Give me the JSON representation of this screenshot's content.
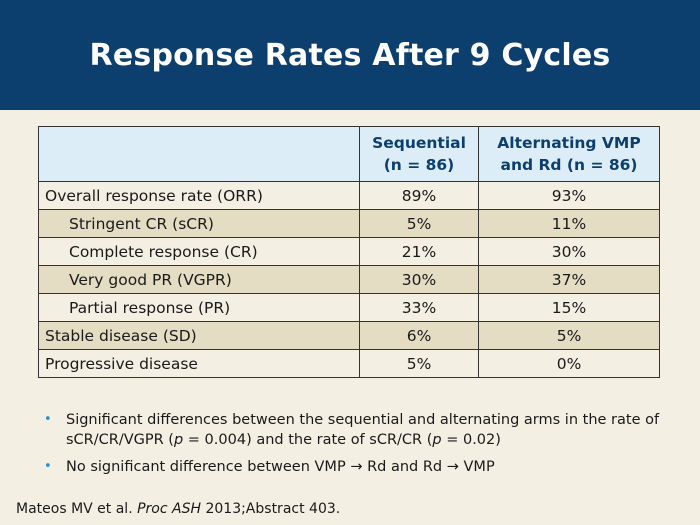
{
  "title": "Response Rates After 9 Cycles",
  "table": {
    "headers": {
      "blank": "",
      "col1_line1": "Sequential",
      "col1_line2": "(n = 86)",
      "col2_line1": "Alternating VMP",
      "col2_line2": "and Rd (n = 86)"
    },
    "rows": [
      {
        "label": "Overall response rate (ORR)",
        "seq": "89%",
        "alt": "93%"
      },
      {
        "label": "Stringent CR (sCR)",
        "seq": "5%",
        "alt": "11%"
      },
      {
        "label": "Complete response (CR)",
        "seq": "21%",
        "alt": "30%"
      },
      {
        "label": "Very good PR (VGPR)",
        "seq": "30%",
        "alt": "37%"
      },
      {
        "label": "Partial response (PR)",
        "seq": "33%",
        "alt": "15%"
      },
      {
        "label": "Stable disease (SD)",
        "seq": "6%",
        "alt": "5%"
      },
      {
        "label": "Progressive disease",
        "seq": "5%",
        "alt": "0%"
      }
    ]
  },
  "bullets": {
    "b1_part1": "Significant differences between the sequential and alternating arms in the rate of sCR/CR/VGPR (",
    "b1_p1": "p",
    "b1_part2": " = 0.004) and the rate of sCR/CR (",
    "b1_p2": "p",
    "b1_part3": " = 0.02)",
    "b2_part1": "No significant difference between VMP ",
    "b2_arrow1": "→",
    "b2_part2": " Rd and Rd ",
    "b2_arrow2": "→",
    "b2_part3": " VMP",
    "marker": "•"
  },
  "citation": {
    "authors": "Mateos MV et al. ",
    "journal": "Proc ASH",
    "rest": " 2013;Abstract 403."
  },
  "colors": {
    "title_bar": "#0c3f6e",
    "background": "#f3efe2",
    "header_fill": "#dcedf7",
    "band_fill": "#e5dcc4",
    "bullet_marker": "#2f8fc4"
  }
}
